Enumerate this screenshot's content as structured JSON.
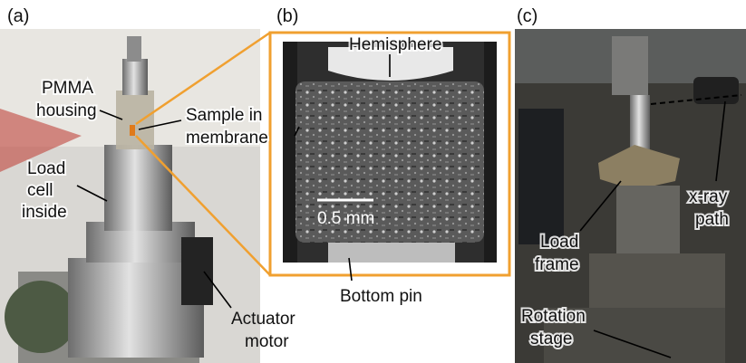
{
  "panels": [
    {
      "label": "(a)",
      "annotations": [
        {
          "lines": [
            "PMMA",
            "housing"
          ]
        },
        {
          "lines": [
            "Sample in",
            "membrane"
          ]
        },
        {
          "lines": [
            "Load",
            "cell",
            "inside"
          ]
        },
        {
          "lines": [
            "Actuator",
            "motor"
          ]
        }
      ]
    },
    {
      "label": "(b)",
      "annotations": [
        {
          "lines": [
            "Hemisphere"
          ]
        },
        {
          "lines": [
            "0.5 mm"
          ]
        },
        {
          "lines": [
            "Bottom pin"
          ]
        }
      ]
    },
    {
      "label": "(c)",
      "annotations": [
        {
          "lines": [
            "x-ray",
            "path"
          ]
        },
        {
          "lines": [
            "Load",
            "frame"
          ]
        },
        {
          "lines": [
            "Rotation",
            "stage"
          ]
        }
      ]
    }
  ]
}
